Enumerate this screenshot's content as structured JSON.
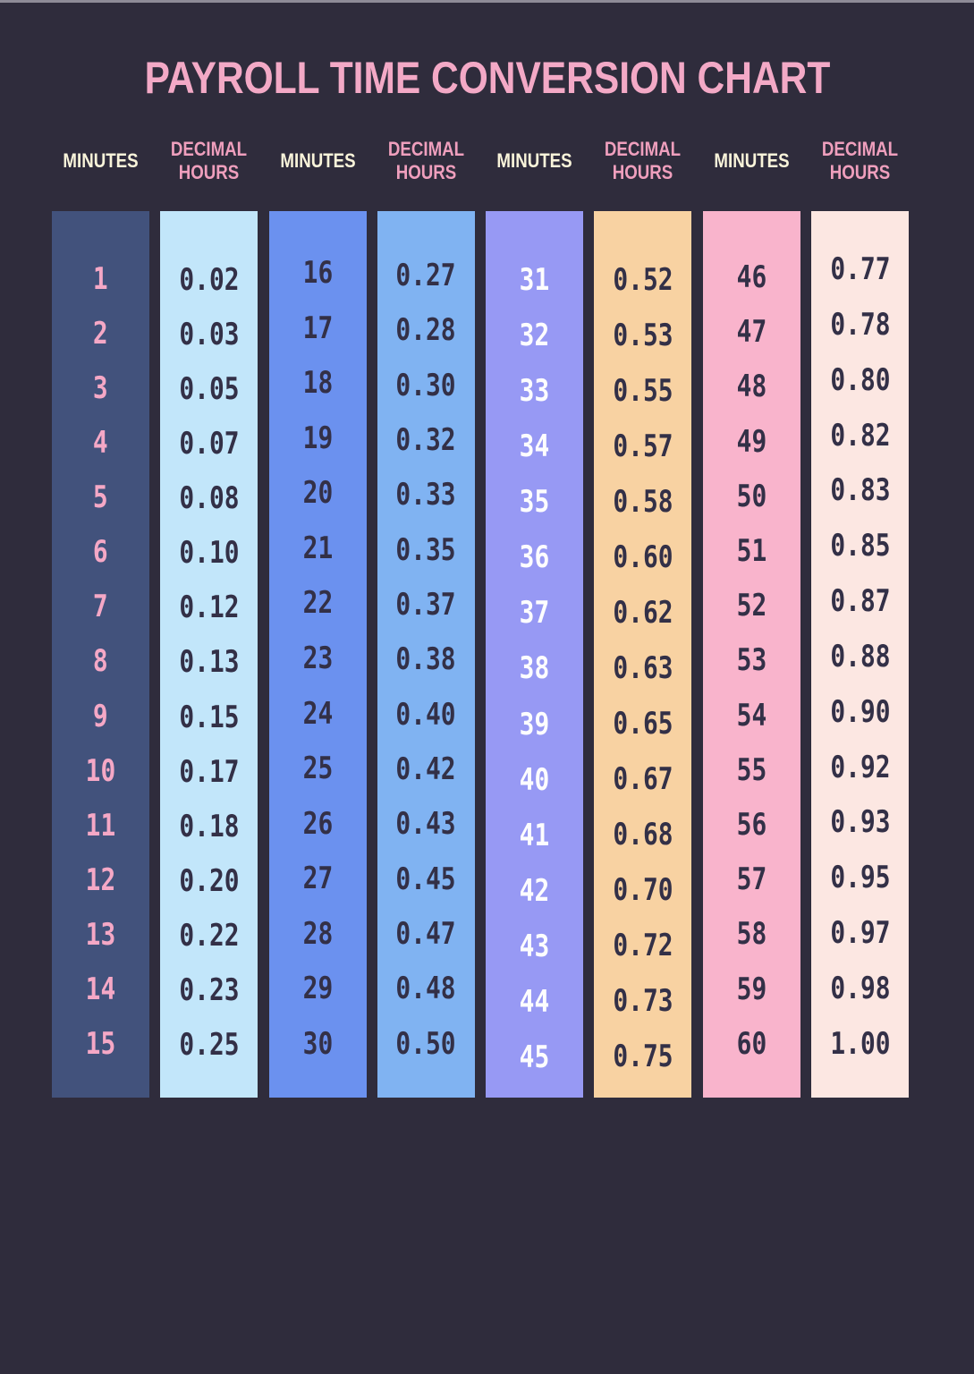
{
  "title": "PAYROLL TIME CONVERSION CHART",
  "colors": {
    "background": "#2f2c3c",
    "top_strip": "#8e8b97",
    "title_text": "#f3a9c6",
    "minutes_header_text": "#f9f4da",
    "decimal_header_text": "#ef9fbd",
    "dark_text": "#333047",
    "pink_text": "#f5a8c6",
    "white_text": "#fdfdfe"
  },
  "chart_data": {
    "type": "table",
    "title": "PAYROLL TIME CONVERSION CHART",
    "layout": {
      "pairs": 4,
      "rows_per_column": 15,
      "legend": "none",
      "grid": "off"
    },
    "header_labels": {
      "minutes": "MINUTES",
      "decimal_hours": "DECIMAL HOURS"
    },
    "columns": [
      {
        "role": "minutes",
        "header": "MINUTES",
        "bg": "#42527c",
        "text": "#f5a8c6",
        "values": [
          "1",
          "2",
          "3",
          "4",
          "5",
          "6",
          "7",
          "8",
          "9",
          "10",
          "11",
          "12",
          "13",
          "14",
          "15"
        ]
      },
      {
        "role": "decimal-hours",
        "header": "DECIMAL HOURS",
        "bg": "#c2e6fa",
        "text": "#333047",
        "values": [
          "0.02",
          "0.03",
          "0.05",
          "0.07",
          "0.08",
          "0.10",
          "0.12",
          "0.13",
          "0.15",
          "0.17",
          "0.18",
          "0.20",
          "0.22",
          "0.23",
          "0.25"
        ]
      },
      {
        "role": "minutes",
        "header": "MINUTES",
        "bg": "#6b91ef",
        "text": "#333047",
        "values": [
          "16",
          "17",
          "18",
          "19",
          "20",
          "21",
          "22",
          "23",
          "24",
          "25",
          "26",
          "27",
          "28",
          "29",
          "30"
        ]
      },
      {
        "role": "decimal-hours",
        "header": "DECIMAL HOURS",
        "bg": "#80b3f2",
        "text": "#333047",
        "values": [
          "0.27",
          "0.28",
          "0.30",
          "0.32",
          "0.33",
          "0.35",
          "0.37",
          "0.38",
          "0.40",
          "0.42",
          "0.43",
          "0.45",
          "0.47",
          "0.48",
          "0.50"
        ]
      },
      {
        "role": "minutes",
        "header": "MINUTES",
        "bg": "#9799f4",
        "text": "#fdfdfe",
        "values": [
          "31",
          "32",
          "33",
          "34",
          "35",
          "36",
          "37",
          "38",
          "39",
          "40",
          "41",
          "42",
          "43",
          "44",
          "45"
        ]
      },
      {
        "role": "decimal-hours",
        "header": "DECIMAL HOURS",
        "bg": "#f8d2a2",
        "text": "#333047",
        "values": [
          "0.52",
          "0.53",
          "0.55",
          "0.57",
          "0.58",
          "0.60",
          "0.62",
          "0.63",
          "0.65",
          "0.67",
          "0.68",
          "0.70",
          "0.72",
          "0.73",
          "0.75"
        ]
      },
      {
        "role": "minutes",
        "header": "MINUTES",
        "bg": "#f9b4cc",
        "text": "#333047",
        "values": [
          "46",
          "47",
          "48",
          "49",
          "50",
          "51",
          "52",
          "53",
          "54",
          "55",
          "56",
          "57",
          "58",
          "59",
          "60"
        ]
      },
      {
        "role": "decimal-hours",
        "header": "DECIMAL HOURS",
        "bg": "#fce7e2",
        "text": "#333047",
        "values": [
          "0.77",
          "0.78",
          "0.80",
          "0.82",
          "0.83",
          "0.85",
          "0.87",
          "0.88",
          "0.90",
          "0.92",
          "0.93",
          "0.95",
          "0.97",
          "0.98",
          "1.00"
        ]
      }
    ]
  }
}
